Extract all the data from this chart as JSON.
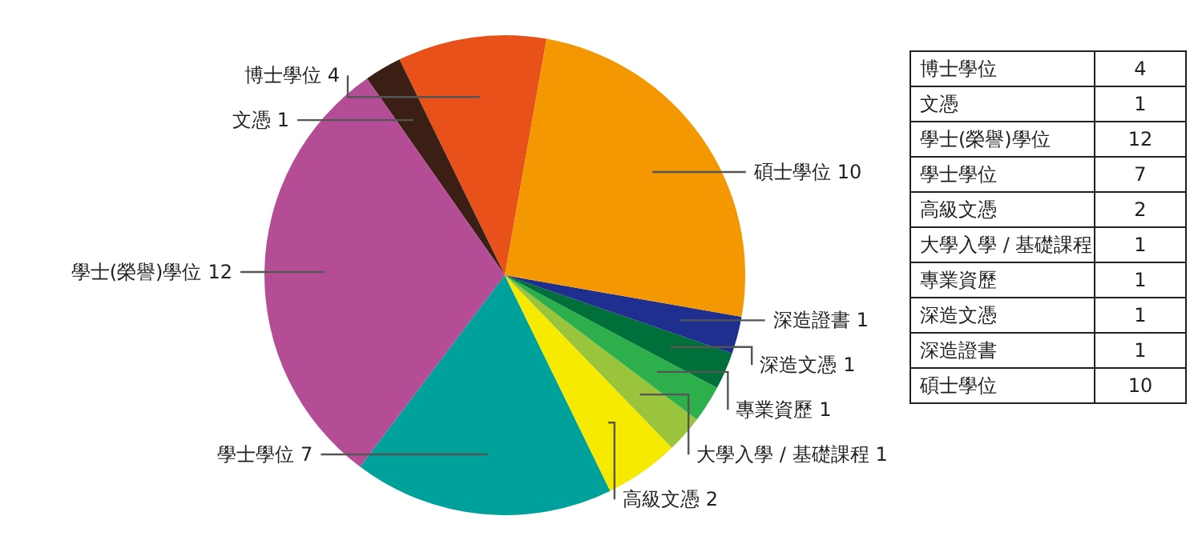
{
  "chart_data": [
    {
      "type": "pie",
      "categories": [
        "博士學位",
        "文憑",
        "學士(榮譽)學位",
        "學士學位",
        "高級文憑",
        "大學入學 / 基礎課程",
        "專業資歷",
        "深造文憑",
        "深造證書",
        "碩士學位"
      ],
      "values": [
        4,
        1,
        12,
        7,
        2,
        1,
        1,
        1,
        1,
        10
      ],
      "colors": [
        "#e8521a",
        "#3b1f14",
        "#b44d96",
        "#00a19a",
        "#f6ea00",
        "#99c43b",
        "#2db04b",
        "#006f3a",
        "#1f2f8f",
        "#f39800"
      ],
      "data_labels": true
    },
    {
      "type": "other",
      "categories": [
        "博士學位",
        "文憑",
        "學士(榮譽)學位",
        "學士學位",
        "高級文憑",
        "大學入學 / 基礎課程",
        "專業資歷",
        "深造文憑",
        "深造證書",
        "碩士學位"
      ],
      "value_labels": [
        "4",
        "1",
        "12",
        "7",
        "2",
        "1",
        "1",
        "1",
        "1",
        "10"
      ]
    }
  ]
}
